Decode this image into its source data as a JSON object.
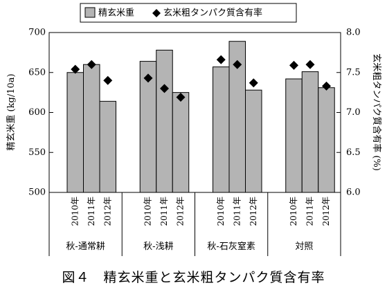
{
  "chart_data": {
    "type": "bar",
    "title": "",
    "legend": [
      {
        "name": "精玄米重",
        "marker": "bar"
      },
      {
        "name": "玄米粗タンパク質含有率",
        "marker": "diamond"
      }
    ],
    "legend_placement": "top-center",
    "ylabel": "精玄米重 (kg/10a)",
    "y2label": "玄米粗タンパク質含有率 (%)",
    "ylim": [
      500,
      700
    ],
    "y2lim": [
      6.0,
      8.0
    ],
    "yticks": [
      "500",
      "550",
      "600",
      "650",
      "700"
    ],
    "y2ticks": [
      "6.0",
      "6.5",
      "7.0",
      "7.5",
      "8.0"
    ],
    "grid": false,
    "groups": [
      {
        "label": "秋-通常耕",
        "years": [
          "2010年",
          "2011年",
          "2012年"
        ],
        "yield": [
          650,
          660,
          614
        ],
        "protein": [
          7.54,
          7.6,
          7.4
        ]
      },
      {
        "label": "秋-浅耕",
        "years": [
          "2010年",
          "2011年",
          "2012年"
        ],
        "yield": [
          664,
          678,
          625
        ],
        "protein": [
          7.43,
          7.3,
          7.19
        ]
      },
      {
        "label": "秋-石灰窒素",
        "years": [
          "2010年",
          "2011年",
          "2012年"
        ],
        "yield": [
          657,
          689,
          628
        ],
        "protein": [
          7.66,
          7.6,
          7.37
        ]
      },
      {
        "label": "対照",
        "years": [
          "2010年",
          "2011年",
          "2012年"
        ],
        "yield": [
          642,
          651,
          631
        ],
        "protein": [
          7.59,
          7.6,
          7.33
        ]
      }
    ],
    "colors": {
      "bar_fill": "#b4b4b4",
      "bar_stroke": "#000000",
      "marker": "#000000"
    }
  },
  "caption": "図４　精玄米重と玄米粗タンパク質含有率"
}
